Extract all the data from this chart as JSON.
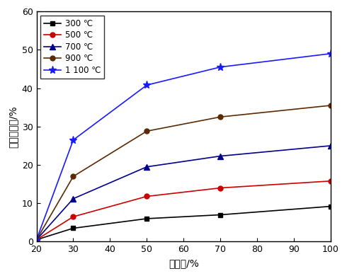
{
  "x": [
    20,
    30,
    50,
    70,
    100
  ],
  "series": [
    {
      "label": "300 ℃",
      "color": "#000000",
      "marker": "s",
      "values": [
        0.5,
        3.5,
        6.0,
        7.0,
        9.2
      ],
      "markersize": 5,
      "linewidth": 1.2
    },
    {
      "label": "500 ℃",
      "color": "#cc0000",
      "marker": "o",
      "values": [
        0.5,
        6.5,
        11.8,
        14.0,
        15.8
      ],
      "markersize": 5,
      "linewidth": 1.2
    },
    {
      "label": "700 ℃",
      "color": "#00008B",
      "marker": "^",
      "values": [
        0.5,
        11.2,
        19.5,
        22.3,
        25.0
      ],
      "markersize": 6,
      "linewidth": 1.2
    },
    {
      "label": "900 ℃",
      "color": "#5C2A00",
      "marker": "o",
      "values": [
        0.5,
        17.0,
        28.8,
        32.5,
        35.5
      ],
      "markersize": 5,
      "linewidth": 1.2
    },
    {
      "label": "1 100 ℃",
      "color": "#1a1aff",
      "marker": "*",
      "values": [
        0.5,
        26.5,
        40.8,
        45.5,
        49.0
      ],
      "markersize": 8,
      "linewidth": 1.2
    }
  ],
  "xlabel": "富氧率/%",
  "ylabel": "燃料节约率/%",
  "xlim": [
    20,
    100
  ],
  "ylim": [
    0,
    60
  ],
  "xticks": [
    20,
    30,
    40,
    50,
    60,
    70,
    80,
    90,
    100
  ],
  "yticks": [
    0,
    10,
    20,
    30,
    40,
    50,
    60
  ],
  "figsize": [
    4.9,
    3.9
  ],
  "dpi": 100
}
